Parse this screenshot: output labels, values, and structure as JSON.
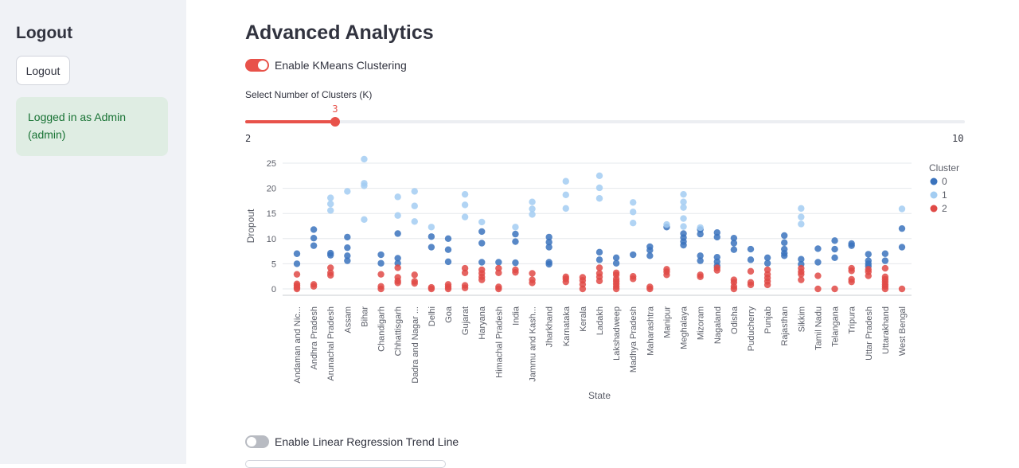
{
  "sidebar": {
    "title": "Logout",
    "logout_button": "Logout",
    "status": "Logged in as Admin (admin)"
  },
  "main": {
    "title": "Advanced Analytics",
    "kmeans_toggle": {
      "label": "Enable KMeans Clustering",
      "on": true
    },
    "slider": {
      "label": "Select Number of Clusters (K)",
      "value": "3",
      "min": "2",
      "max": "10",
      "fraction": 0.125
    },
    "regression_toggle": {
      "label": "Enable Linear Regression Trend Line",
      "on": false
    }
  },
  "colors": {
    "accent": "#e8524a",
    "cluster0": "#3b73bd",
    "cluster1": "#a3cdf2",
    "cluster2": "#e04a47"
  },
  "chart_data": {
    "type": "scatter",
    "xlabel": "State",
    "ylabel": "Dropout",
    "legend_title": "Cluster",
    "legend_position": "top-right",
    "ylim": [
      0,
      26
    ],
    "yticks": [
      "0",
      "5",
      "10",
      "15",
      "20",
      "25"
    ],
    "categories": [
      "Andaman and Nic...",
      "Andhra Pradesh",
      "Arunachal Pradesh",
      "Assam",
      "Bihar",
      "Chandigarh",
      "Chhattisgarh",
      "Dadra and Nagar ...",
      "Delhi",
      "Goa",
      "Gujarat",
      "Haryana",
      "Himachal Pradesh",
      "India",
      "Jammu and Kash...",
      "Jharkhand",
      "Karnataka",
      "Kerala",
      "Ladakh",
      "Lakshadweep",
      "Madhya Pradesh",
      "Maharashtra",
      "Manipur",
      "Meghalaya",
      "Mizoram",
      "Nagaland",
      "Odisha",
      "Puducherry",
      "Punjab",
      "Rajasthan",
      "Sikkim",
      "Tamil Nadu",
      "Telangana",
      "Tripura",
      "Uttar Pradesh",
      "Uttarakhand",
      "West Bengal"
    ],
    "series": [
      {
        "name": "0",
        "points": [
          [
            0,
            7.0
          ],
          [
            0,
            5.0
          ],
          [
            1,
            11.8
          ],
          [
            1,
            10.1
          ],
          [
            1,
            8.6
          ],
          [
            2,
            7.1
          ],
          [
            2,
            6.7
          ],
          [
            3,
            10.3
          ],
          [
            3,
            8.2
          ],
          [
            3,
            6.6
          ],
          [
            3,
            5.6
          ],
          [
            5,
            6.8
          ],
          [
            5,
            5.1
          ],
          [
            6,
            11.0
          ],
          [
            6,
            6.1
          ],
          [
            6,
            5.1
          ],
          [
            8,
            10.4
          ],
          [
            8,
            8.3
          ],
          [
            9,
            10.0
          ],
          [
            9,
            7.8
          ],
          [
            9,
            5.4
          ],
          [
            11,
            11.4
          ],
          [
            11,
            9.1
          ],
          [
            11,
            5.3
          ],
          [
            12,
            5.3
          ],
          [
            13,
            10.9
          ],
          [
            13,
            9.4
          ],
          [
            13,
            5.2
          ],
          [
            15,
            10.3
          ],
          [
            15,
            9.3
          ],
          [
            15,
            8.3
          ],
          [
            15,
            5.3
          ],
          [
            15,
            4.9
          ],
          [
            18,
            7.3
          ],
          [
            18,
            5.8
          ],
          [
            19,
            6.2
          ],
          [
            19,
            5.1
          ],
          [
            20,
            6.8
          ],
          [
            21,
            8.4
          ],
          [
            21,
            7.7
          ],
          [
            21,
            6.6
          ],
          [
            22,
            12.3
          ],
          [
            23,
            11.0
          ],
          [
            23,
            10.2
          ],
          [
            23,
            9.4
          ],
          [
            23,
            8.7
          ],
          [
            24,
            11.8
          ],
          [
            24,
            10.9
          ],
          [
            24,
            6.6
          ],
          [
            24,
            5.6
          ],
          [
            25,
            11.2
          ],
          [
            25,
            10.3
          ],
          [
            25,
            6.3
          ],
          [
            25,
            5.4
          ],
          [
            25,
            4.6
          ],
          [
            26,
            10.1
          ],
          [
            26,
            9.1
          ],
          [
            26,
            7.8
          ],
          [
            27,
            7.9
          ],
          [
            27,
            5.8
          ],
          [
            28,
            6.2
          ],
          [
            28,
            5.1
          ],
          [
            29,
            10.6
          ],
          [
            29,
            9.2
          ],
          [
            29,
            7.9
          ],
          [
            29,
            7.1
          ],
          [
            29,
            6.6
          ],
          [
            30,
            5.9
          ],
          [
            30,
            4.9
          ],
          [
            31,
            8.0
          ],
          [
            31,
            5.3
          ],
          [
            32,
            9.6
          ],
          [
            32,
            7.9
          ],
          [
            32,
            6.2
          ],
          [
            33,
            9.0
          ],
          [
            33,
            8.6
          ],
          [
            34,
            6.9
          ],
          [
            34,
            5.6
          ],
          [
            34,
            5.0
          ],
          [
            34,
            4.5
          ],
          [
            35,
            7.0
          ],
          [
            35,
            5.6
          ],
          [
            36,
            12.0
          ],
          [
            36,
            8.3
          ]
        ]
      },
      {
        "name": "1",
        "points": [
          [
            2,
            18.1
          ],
          [
            2,
            16.9
          ],
          [
            2,
            15.6
          ],
          [
            3,
            19.4
          ],
          [
            4,
            25.8
          ],
          [
            4,
            21.0
          ],
          [
            4,
            20.5
          ],
          [
            4,
            13.8
          ],
          [
            6,
            18.3
          ],
          [
            6,
            14.6
          ],
          [
            7,
            19.4
          ],
          [
            7,
            16.5
          ],
          [
            7,
            13.4
          ],
          [
            8,
            12.3
          ],
          [
            10,
            18.8
          ],
          [
            10,
            16.7
          ],
          [
            10,
            14.3
          ],
          [
            11,
            13.3
          ],
          [
            13,
            12.3
          ],
          [
            14,
            17.3
          ],
          [
            14,
            15.9
          ],
          [
            14,
            14.8
          ],
          [
            16,
            21.4
          ],
          [
            16,
            18.7
          ],
          [
            16,
            16.0
          ],
          [
            18,
            22.5
          ],
          [
            18,
            20.1
          ],
          [
            18,
            18.0
          ],
          [
            20,
            17.2
          ],
          [
            20,
            15.3
          ],
          [
            20,
            13.1
          ],
          [
            22,
            12.8
          ],
          [
            23,
            18.8
          ],
          [
            23,
            17.3
          ],
          [
            23,
            16.2
          ],
          [
            23,
            14.0
          ],
          [
            23,
            12.4
          ],
          [
            24,
            12.2
          ],
          [
            30,
            16.0
          ],
          [
            30,
            14.3
          ],
          [
            30,
            12.9
          ],
          [
            36,
            15.9
          ]
        ]
      },
      {
        "name": "2",
        "points": [
          [
            0,
            2.9
          ],
          [
            0,
            1.0
          ],
          [
            0,
            0.7
          ],
          [
            0,
            0.3
          ],
          [
            0,
            0.0
          ],
          [
            1,
            0.9
          ],
          [
            1,
            0.5
          ],
          [
            2,
            4.2
          ],
          [
            2,
            3.2
          ],
          [
            2,
            2.7
          ],
          [
            5,
            2.9
          ],
          [
            5,
            0.5
          ],
          [
            5,
            0.0
          ],
          [
            6,
            4.2
          ],
          [
            6,
            2.3
          ],
          [
            6,
            1.6
          ],
          [
            6,
            1.2
          ],
          [
            7,
            2.8
          ],
          [
            7,
            1.5
          ],
          [
            7,
            1.1
          ],
          [
            8,
            0.3
          ],
          [
            8,
            0.0
          ],
          [
            9,
            0.9
          ],
          [
            9,
            0.4
          ],
          [
            9,
            0.0
          ],
          [
            10,
            4.1
          ],
          [
            10,
            3.2
          ],
          [
            10,
            0.7
          ],
          [
            10,
            0.2
          ],
          [
            11,
            3.8
          ],
          [
            11,
            3.1
          ],
          [
            11,
            2.4
          ],
          [
            11,
            1.8
          ],
          [
            12,
            4.1
          ],
          [
            12,
            3.2
          ],
          [
            12,
            0.4
          ],
          [
            12,
            0.0
          ],
          [
            13,
            3.8
          ],
          [
            13,
            3.3
          ],
          [
            14,
            3.1
          ],
          [
            14,
            1.8
          ],
          [
            14,
            1.2
          ],
          [
            16,
            2.4
          ],
          [
            16,
            2.0
          ],
          [
            16,
            1.4
          ],
          [
            17,
            2.3
          ],
          [
            17,
            1.7
          ],
          [
            17,
            0.9
          ],
          [
            17,
            0.0
          ],
          [
            18,
            4.2
          ],
          [
            18,
            3.1
          ],
          [
            18,
            2.4
          ],
          [
            18,
            1.6
          ],
          [
            19,
            3.2
          ],
          [
            19,
            2.8
          ],
          [
            19,
            2.0
          ],
          [
            19,
            1.5
          ],
          [
            19,
            1.0
          ],
          [
            19,
            0.5
          ],
          [
            19,
            0.0
          ],
          [
            20,
            2.5
          ],
          [
            20,
            2.0
          ],
          [
            21,
            0.4
          ],
          [
            21,
            0.0
          ],
          [
            22,
            3.9
          ],
          [
            22,
            3.4
          ],
          [
            22,
            2.8
          ],
          [
            24,
            2.8
          ],
          [
            24,
            2.4
          ],
          [
            25,
            4.2
          ],
          [
            25,
            3.7
          ],
          [
            26,
            1.8
          ],
          [
            26,
            1.3
          ],
          [
            26,
            0.5
          ],
          [
            26,
            0.0
          ],
          [
            27,
            3.5
          ],
          [
            27,
            1.3
          ],
          [
            27,
            0.8
          ],
          [
            28,
            3.8
          ],
          [
            28,
            2.9
          ],
          [
            28,
            2.2
          ],
          [
            28,
            1.5
          ],
          [
            28,
            0.8
          ],
          [
            30,
            4.1
          ],
          [
            30,
            3.4
          ],
          [
            30,
            2.9
          ],
          [
            30,
            1.8
          ],
          [
            31,
            2.6
          ],
          [
            31,
            0.0
          ],
          [
            32,
            0.0
          ],
          [
            33,
            4.1
          ],
          [
            33,
            3.6
          ],
          [
            33,
            1.9
          ],
          [
            33,
            1.4
          ],
          [
            34,
            3.9
          ],
          [
            34,
            3.4
          ],
          [
            34,
            2.6
          ],
          [
            35,
            4.1
          ],
          [
            35,
            2.4
          ],
          [
            35,
            1.9
          ],
          [
            35,
            1.4
          ],
          [
            35,
            0.9
          ],
          [
            35,
            0.5
          ],
          [
            35,
            0.0
          ],
          [
            36,
            0.0
          ]
        ]
      }
    ]
  }
}
